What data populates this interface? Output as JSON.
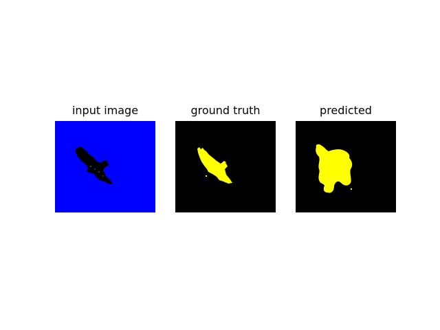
{
  "panels": [
    {
      "title": "input image"
    },
    {
      "title": "ground truth"
    },
    {
      "title": "predicted"
    }
  ],
  "colors": {
    "input_background": "#0000ff",
    "bird_silhouette": "#000000",
    "mask_background": "#000000",
    "mask_foreground": "#ffff00"
  }
}
